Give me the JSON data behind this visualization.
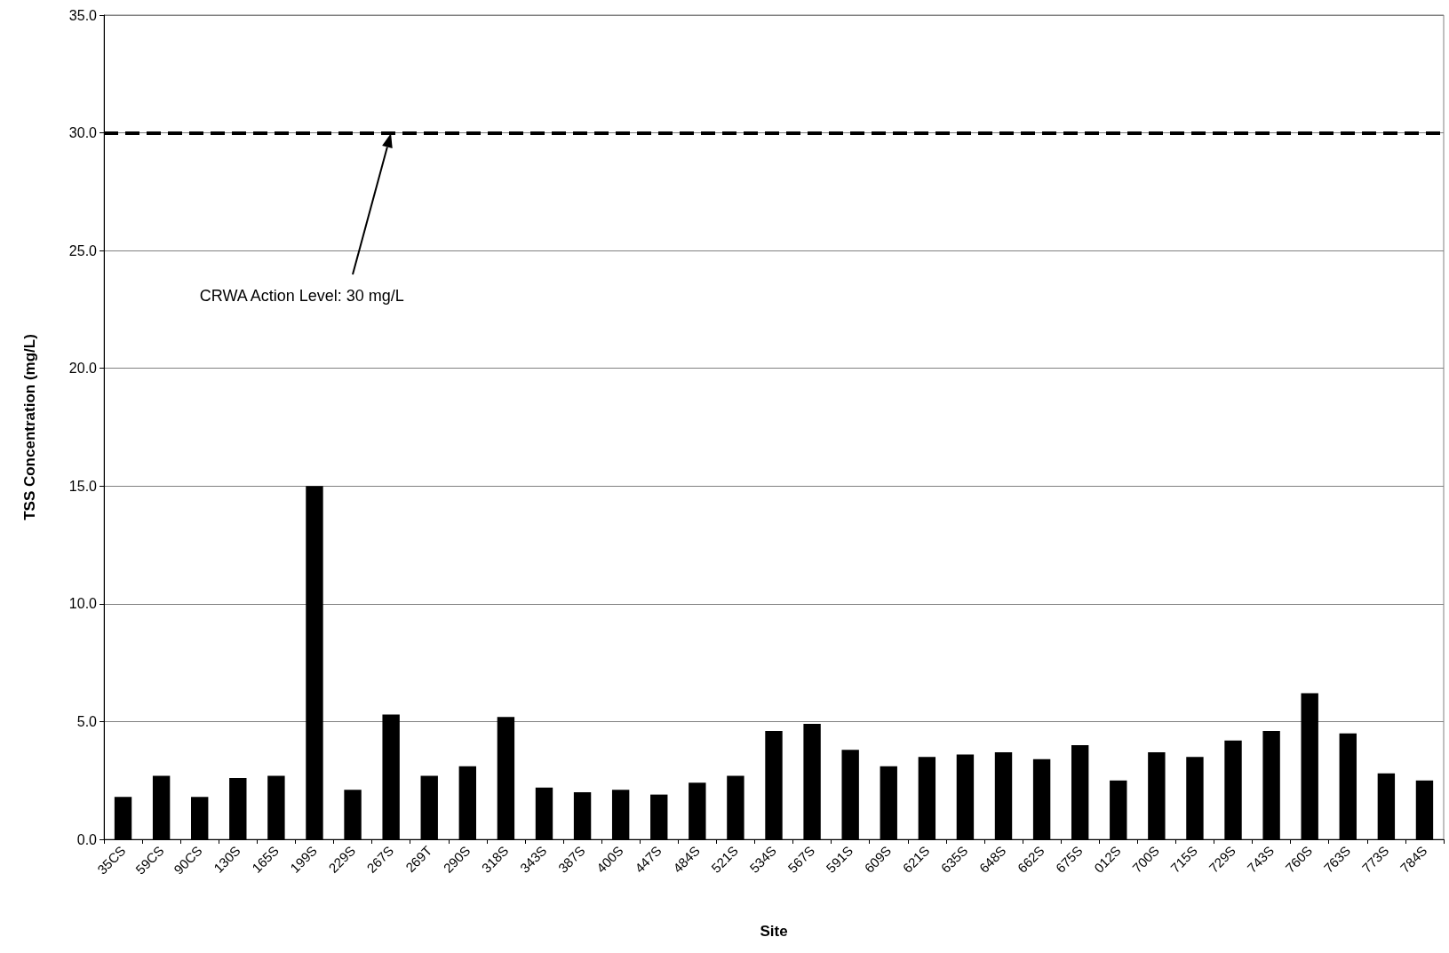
{
  "chart_data": {
    "type": "bar",
    "xlabel": "Site",
    "ylabel": "TSS Concentration (mg/L)",
    "categories": [
      "35CS",
      "59CS",
      "90CS",
      "130S",
      "165S",
      "199S",
      "229S",
      "267S",
      "269T",
      "290S",
      "318S",
      "343S",
      "387S",
      "400S",
      "447S",
      "484S",
      "521S",
      "534S",
      "567S",
      "591S",
      "609S",
      "621S",
      "635S",
      "648S",
      "662S",
      "675S",
      "012S",
      "700S",
      "715S",
      "729S",
      "743S",
      "760S",
      "763S",
      "773S",
      "784S"
    ],
    "values": [
      1.8,
      2.7,
      1.8,
      2.6,
      2.7,
      15.0,
      2.1,
      5.3,
      2.7,
      3.1,
      5.2,
      2.2,
      2.0,
      2.1,
      1.9,
      2.4,
      2.7,
      4.6,
      4.9,
      3.8,
      3.1,
      3.5,
      3.6,
      3.7,
      3.4,
      4.0,
      2.5,
      3.7,
      3.5,
      4.2,
      4.6,
      6.2,
      4.5,
      2.8,
      2.5
    ],
    "color": "#000000",
    "ylim": [
      0,
      35
    ],
    "yticks": [
      {
        "value": 0,
        "label": "0.0"
      },
      {
        "value": 5,
        "label": "5.0"
      },
      {
        "value": 10,
        "label": "10.0"
      },
      {
        "value": 15,
        "label": "15.0"
      },
      {
        "value": 20,
        "label": "20.0"
      },
      {
        "value": 25,
        "label": "25.0"
      },
      {
        "value": 30,
        "label": "30.0"
      },
      {
        "value": 35,
        "label": "35.0"
      }
    ],
    "grid": "y",
    "ref_lines": [
      {
        "axis": "y",
        "value": 30,
        "label": "CRWA Action Level: 30 mg/L",
        "color": "#000000",
        "line_style": "dashed"
      }
    ]
  }
}
